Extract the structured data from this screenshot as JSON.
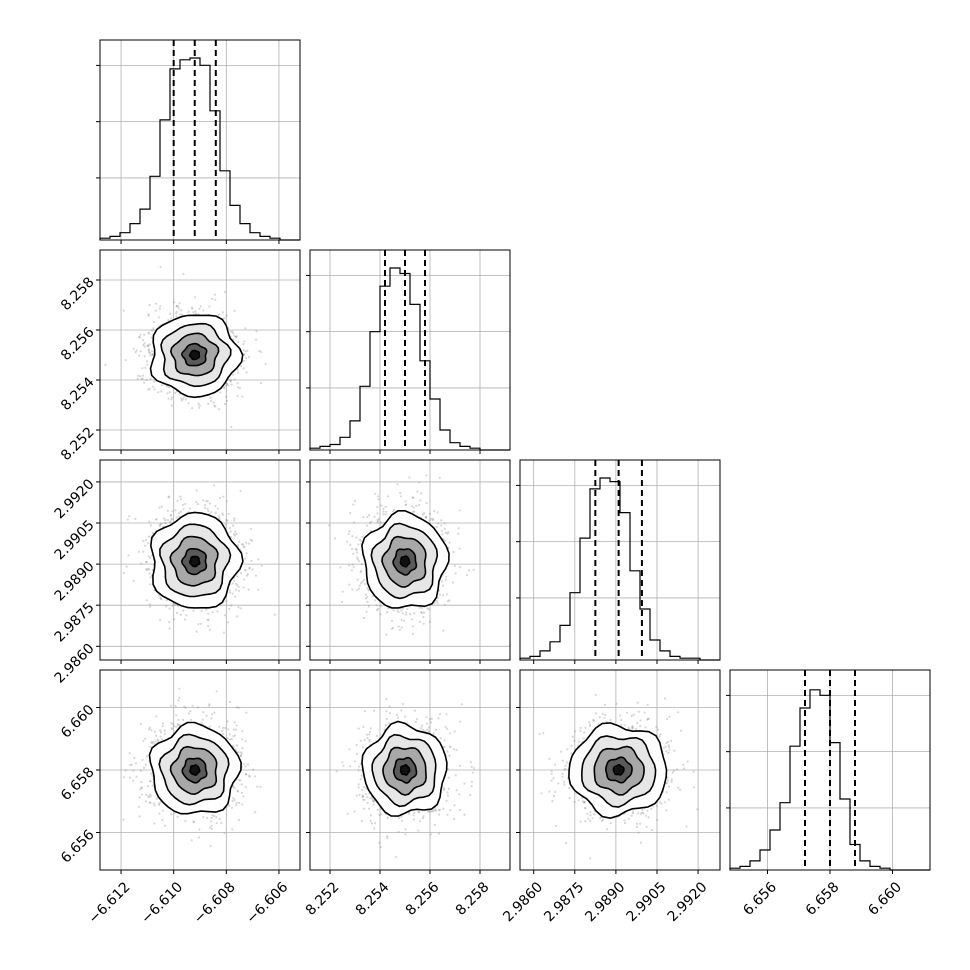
{
  "chart_data": {
    "type": "corner",
    "params": [
      {
        "index": 0,
        "hist_range": [
          -6.6128,
          -6.6052
        ],
        "mean": -6.6092,
        "std": 0.0008,
        "quantiles": [
          -6.61,
          -6.6092,
          -6.6084
        ],
        "xticks": [
          -6.612,
          -6.61,
          -6.608,
          -6.606
        ],
        "xtick_labels": [
          "−6.612",
          "−6.610",
          "−6.608",
          "−6.606"
        ],
        "ytick_labels": []
      },
      {
        "index": 1,
        "hist_range": [
          8.2512,
          8.2592
        ],
        "mean": 8.255,
        "std": 0.0008,
        "quantiles": [
          8.2542,
          8.255,
          8.2558
        ],
        "xticks": [
          8.252,
          8.254,
          8.256,
          8.258
        ],
        "xtick_labels": [
          "8.252",
          "8.254",
          "8.256",
          "8.258"
        ],
        "yticks": [
          8.252,
          8.254,
          8.256,
          8.258
        ],
        "ytick_labels": [
          "8.252",
          "8.254",
          "8.256",
          "8.258"
        ]
      },
      {
        "index": 2,
        "hist_range": [
          2.9855,
          2.9928
        ],
        "mean": 2.9891,
        "std": 0.00085,
        "quantiles": [
          2.98825,
          2.9891,
          2.98995
        ],
        "xticks": [
          2.986,
          2.9875,
          2.989,
          2.9905,
          2.992
        ],
        "xtick_labels": [
          "2.9860",
          "2.9875",
          "2.9890",
          "2.9905",
          "2.9920"
        ],
        "yticks": [
          2.986,
          2.9875,
          2.989,
          2.9905,
          2.992
        ],
        "ytick_labels": [
          "2.9860",
          "2.9875",
          "2.9890",
          "2.9905",
          "2.9920"
        ]
      },
      {
        "index": 3,
        "hist_range": [
          6.6548,
          6.6612
        ],
        "mean": 6.658,
        "std": 0.0007,
        "quantiles": [
          6.6572,
          6.658,
          6.6588
        ],
        "xticks": [
          6.656,
          6.658,
          6.66
        ],
        "xtick_labels": [
          "6.656",
          "6.658",
          "6.660"
        ],
        "yticks": [
          6.656,
          6.658,
          6.66
        ],
        "ytick_labels": [
          "6.656",
          "6.658",
          "6.660"
        ]
      }
    ],
    "histograms": [
      {
        "param": 0,
        "counts": [
          1,
          2,
          4,
          9,
          17,
          35,
          66,
          94,
          99,
          100,
          96,
          71,
          38,
          19,
          9,
          4,
          2,
          1,
          0,
          0
        ]
      },
      {
        "param": 1,
        "counts": [
          1,
          2,
          3,
          7,
          16,
          35,
          65,
          90,
          100,
          97,
          80,
          49,
          28,
          11,
          4,
          2,
          1,
          0,
          0,
          0
        ]
      },
      {
        "param": 2,
        "counts": [
          1,
          2,
          5,
          10,
          19,
          37,
          67,
          94,
          100,
          98,
          81,
          49,
          28,
          11,
          5,
          2,
          1,
          1,
          0,
          0
        ]
      },
      {
        "param": 3,
        "counts": [
          1,
          2,
          5,
          11,
          22,
          37,
          68,
          89,
          99,
          96,
          70,
          39,
          14,
          5,
          2,
          1,
          0,
          0,
          0,
          0
        ]
      }
    ],
    "grid": true,
    "legend": "none"
  }
}
